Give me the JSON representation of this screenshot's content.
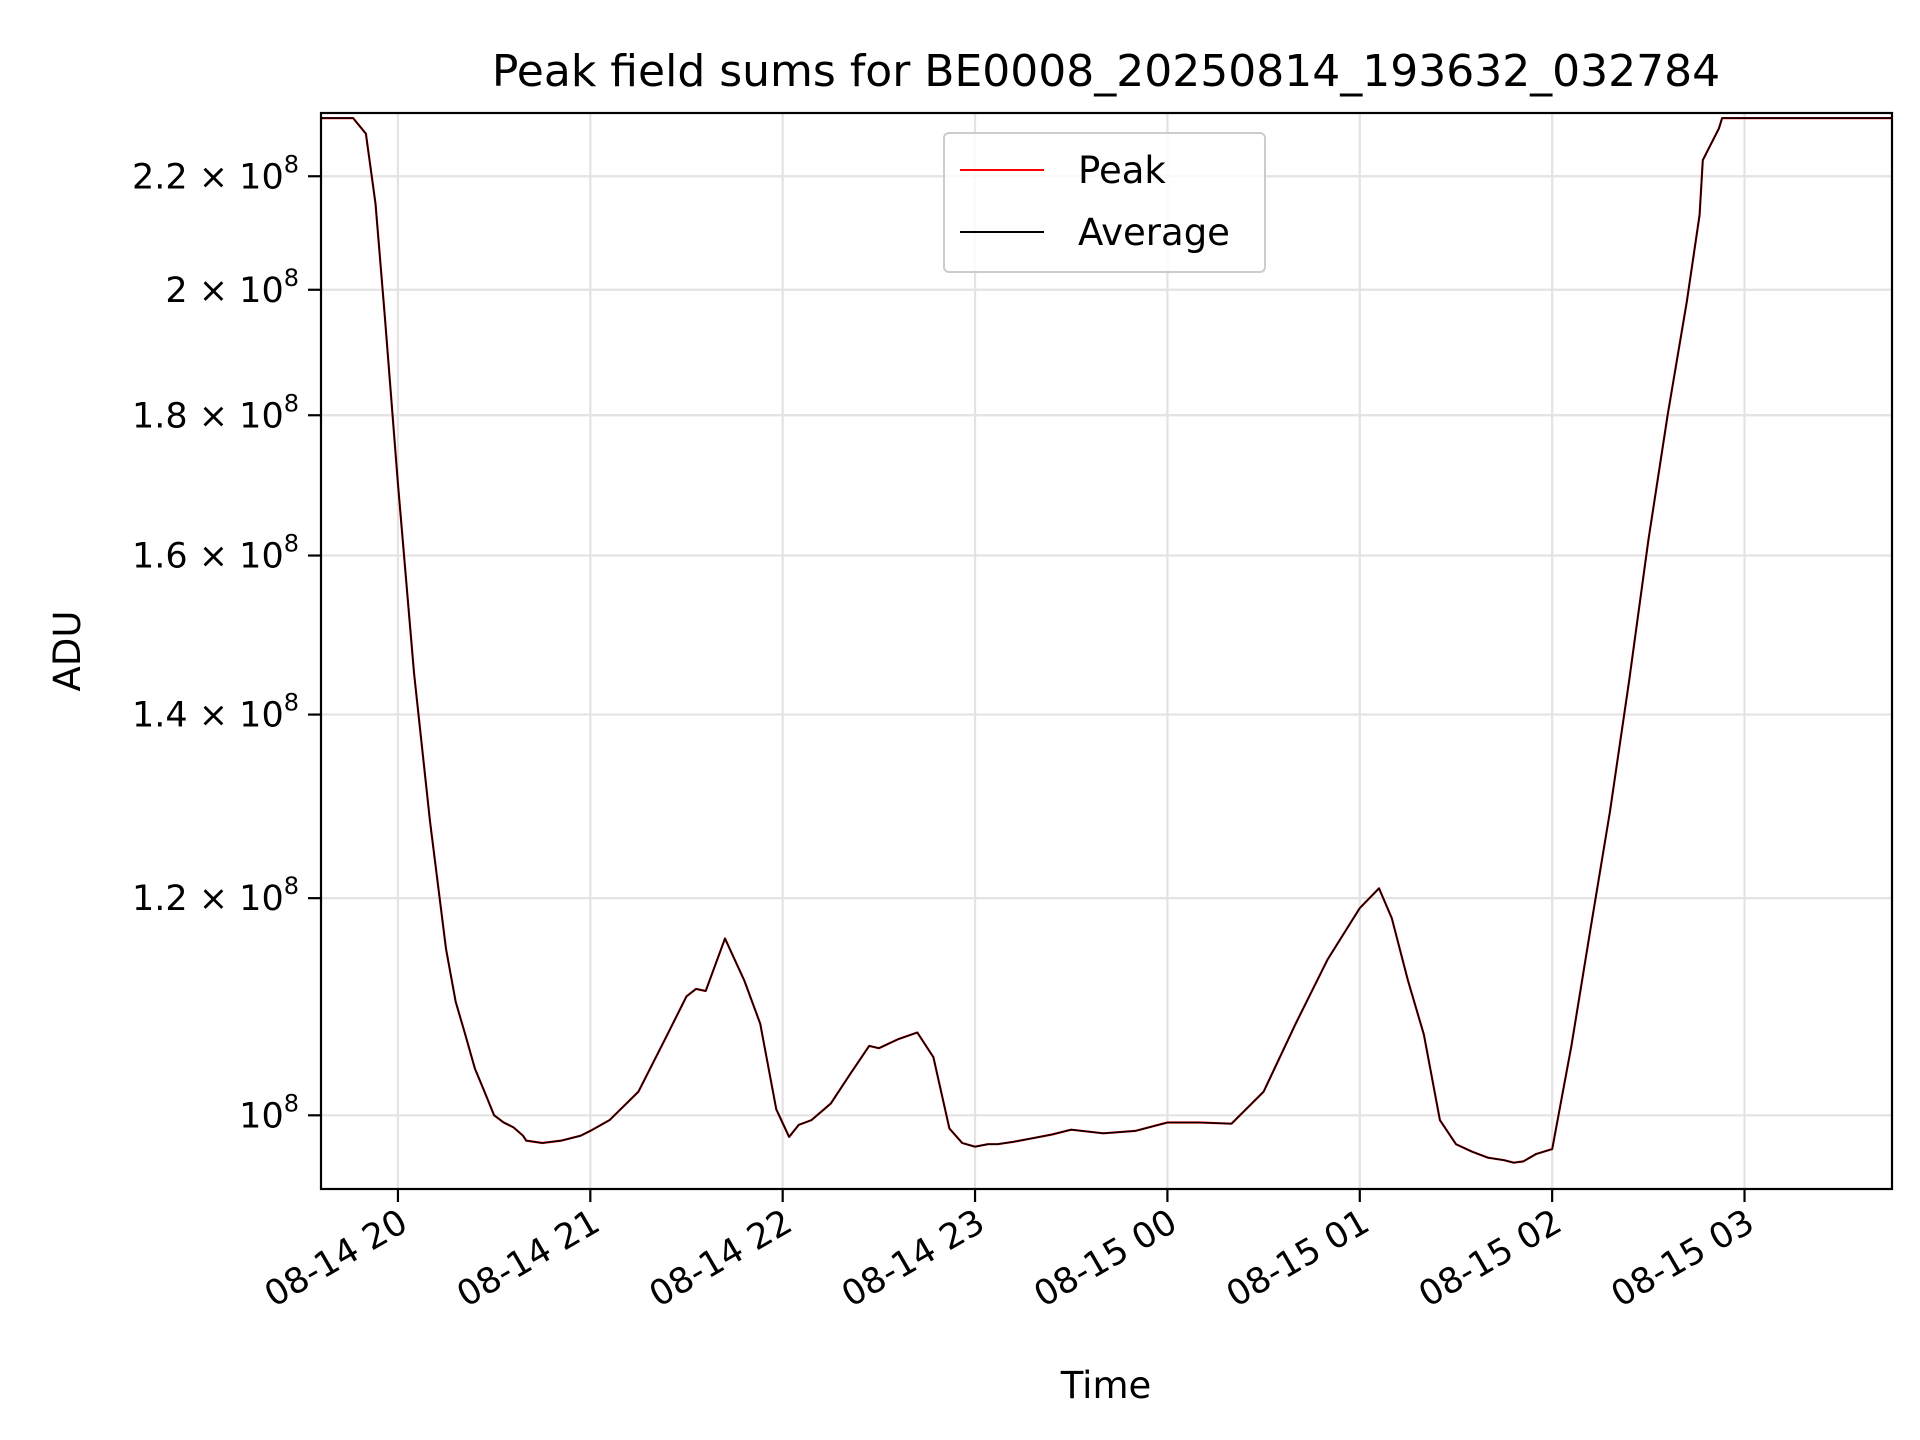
{
  "chart_data": {
    "type": "line",
    "title": "Peak field sums for BE0008_20250814_193632_032784",
    "xlabel": "Time",
    "ylabel": "ADU",
    "x_axis_type": "datetime",
    "y_scale": "log",
    "xlim": [
      "2025-08-14 19:36",
      "2025-08-15 03:46"
    ],
    "ylim": [
      94000000,
      232000000
    ],
    "grid": true,
    "legend_position": "upper center",
    "x_ticks": [
      "08-14 20",
      "08-14 21",
      "08-14 22",
      "08-14 23",
      "08-15 00",
      "08-15 01",
      "08-15 02",
      "08-15 03"
    ],
    "y_ticks": [
      {
        "value": 100000000,
        "base": "10",
        "exponent": "8"
      },
      {
        "value": 120000000,
        "base": "1.2 × 10",
        "exponent": "8"
      },
      {
        "value": 140000000,
        "base": "1.4 × 10",
        "exponent": "8"
      },
      {
        "value": 160000000,
        "base": "1.6 × 10",
        "exponent": "8"
      },
      {
        "value": 180000000,
        "base": "1.8 × 10",
        "exponent": "8"
      },
      {
        "value": 200000000,
        "base": "2 × 10",
        "exponent": "8"
      },
      {
        "value": 220000000,
        "base": "2.2 × 10",
        "exponent": "8"
      }
    ],
    "x": [
      "2025-08-14 19:36",
      "2025-08-14 19:46",
      "2025-08-14 19:50",
      "2025-08-14 19:53",
      "2025-08-14 19:56",
      "2025-08-14 20:00",
      "2025-08-14 20:05",
      "2025-08-14 20:10",
      "2025-08-14 20:15",
      "2025-08-14 20:18",
      "2025-08-14 20:21",
      "2025-08-14 20:24",
      "2025-08-14 20:27",
      "2025-08-14 20:30",
      "2025-08-14 20:33",
      "2025-08-14 20:36",
      "2025-08-14 20:39",
      "2025-08-14 20:40",
      "2025-08-14 20:45",
      "2025-08-14 20:51",
      "2025-08-14 20:57",
      "2025-08-14 21:00",
      "2025-08-14 21:06",
      "2025-08-14 21:15",
      "2025-08-14 21:24",
      "2025-08-14 21:30",
      "2025-08-14 21:33",
      "2025-08-14 21:36",
      "2025-08-14 21:42",
      "2025-08-14 21:48",
      "2025-08-14 21:53",
      "2025-08-14 21:58",
      "2025-08-14 22:02",
      "2025-08-14 22:05",
      "2025-08-14 22:09",
      "2025-08-14 22:15",
      "2025-08-14 22:21",
      "2025-08-14 22:27",
      "2025-08-14 22:30",
      "2025-08-14 22:36",
      "2025-08-14 22:42",
      "2025-08-14 22:47",
      "2025-08-14 22:52",
      "2025-08-14 22:56",
      "2025-08-14 23:00",
      "2025-08-14 23:04",
      "2025-08-14 23:07",
      "2025-08-14 23:12",
      "2025-08-14 23:18",
      "2025-08-14 23:24",
      "2025-08-14 23:30",
      "2025-08-14 23:40",
      "2025-08-14 23:50",
      "2025-08-15 00:00",
      "2025-08-15 00:10",
      "2025-08-15 00:20",
      "2025-08-15 00:30",
      "2025-08-15 00:40",
      "2025-08-15 00:50",
      "2025-08-15 01:00",
      "2025-08-15 01:06",
      "2025-08-15 01:10",
      "2025-08-15 01:15",
      "2025-08-15 01:20",
      "2025-08-15 01:25",
      "2025-08-15 01:30",
      "2025-08-15 01:35",
      "2025-08-15 01:40",
      "2025-08-15 01:45",
      "2025-08-15 01:48",
      "2025-08-15 01:51",
      "2025-08-15 01:55",
      "2025-08-15 02:00",
      "2025-08-15 02:06",
      "2025-08-15 02:12",
      "2025-08-15 02:18",
      "2025-08-15 02:24",
      "2025-08-15 02:30",
      "2025-08-15 02:36",
      "2025-08-15 02:42",
      "2025-08-15 02:46",
      "2025-08-15 02:47",
      "2025-08-15 02:52",
      "2025-08-15 02:53",
      "2025-08-15 02:56",
      "2025-08-15 02:59",
      "2025-08-15 03:01",
      "2025-08-15 03:04",
      "2025-08-15 03:06",
      "2025-08-15 03:09",
      "2025-08-15 03:12",
      "2025-08-15 03:15",
      "2025-08-15 03:18",
      "2025-08-15 03:21",
      "2025-08-15 03:24",
      "2025-08-15 03:27",
      "2025-08-15 03:30",
      "2025-08-15 03:34",
      "2025-08-15 03:40",
      "2025-08-15 03:46"
    ],
    "series": [
      {
        "name": "Peak",
        "color": "#ff0000",
        "values": [
          231000000,
          231000000,
          228000000,
          215000000,
          195000000,
          170000000,
          145000000,
          128000000,
          115000000,
          110000000,
          107000000,
          104000000,
          102000000,
          100000000,
          99400000,
          99000000,
          98300000,
          97900000,
          97700000,
          97900000,
          98300000,
          98700000,
          99600000,
          102000000,
          107000000,
          110500000,
          111200000,
          111000000,
          116000000,
          112000000,
          108000000,
          100500000,
          98200000,
          99200000,
          99600000,
          101000000,
          103500000,
          106000000,
          105800000,
          106600000,
          107200000,
          105000000,
          98900000,
          97700000,
          97400000,
          97600000,
          97600000,
          97800000,
          98100000,
          98400000,
          98800000,
          98500000,
          98700000,
          99400000,
          99400000,
          99300000,
          102000000,
          108000000,
          114000000,
          119000000,
          121000000,
          118000000,
          112000000,
          107000000,
          99600000,
          97600000,
          97000000,
          96500000,
          96300000,
          96100000,
          96200000,
          96800000,
          97200000,
          106000000,
          117000000,
          129000000,
          144000000,
          162000000,
          180000000,
          198000000,
          213000000,
          223000000,
          229000000,
          231000000,
          231000000,
          231000000,
          231000000,
          231000000,
          231000000,
          231000000,
          231000000,
          231000000,
          231000000,
          231000000,
          231000000,
          231000000,
          231000000,
          231000000,
          231000000,
          231000000
        ]
      },
      {
        "name": "Average",
        "color": "#000000",
        "values": [
          231000000,
          231000000,
          228000000,
          215000000,
          195000000,
          170000000,
          145000000,
          128000000,
          115000000,
          110000000,
          107000000,
          104000000,
          102000000,
          100000000,
          99400000,
          99000000,
          98300000,
          97900000,
          97700000,
          97900000,
          98300000,
          98700000,
          99600000,
          102000000,
          107000000,
          110500000,
          111200000,
          111000000,
          116000000,
          112000000,
          108000000,
          100500000,
          98200000,
          99200000,
          99600000,
          101000000,
          103500000,
          106000000,
          105800000,
          106600000,
          107200000,
          105000000,
          98900000,
          97700000,
          97400000,
          97600000,
          97600000,
          97800000,
          98100000,
          98400000,
          98800000,
          98500000,
          98700000,
          99400000,
          99400000,
          99300000,
          102000000,
          108000000,
          114000000,
          119000000,
          121000000,
          118000000,
          112000000,
          107000000,
          99600000,
          97600000,
          97000000,
          96500000,
          96300000,
          96100000,
          96200000,
          96800000,
          97200000,
          106000000,
          117000000,
          129000000,
          144000000,
          162000000,
          180000000,
          198000000,
          213000000,
          223000000,
          229000000,
          231000000,
          231000000,
          231000000,
          231000000,
          231000000,
          231000000,
          231000000,
          231000000,
          231000000,
          231000000,
          231000000,
          231000000,
          231000000,
          231000000,
          231000000,
          231000000,
          231000000
        ]
      }
    ]
  }
}
